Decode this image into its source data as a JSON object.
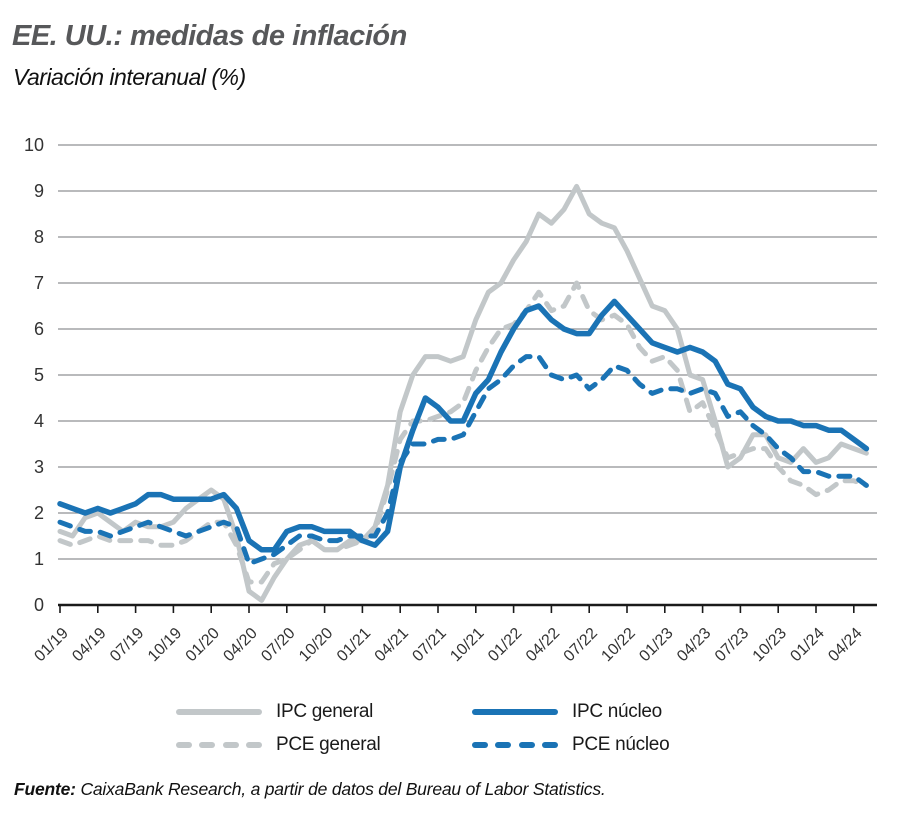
{
  "header": {
    "title": "EE. UU.: medidas de inflación",
    "subtitle": "Variación interanual (%)"
  },
  "theme": {
    "blue": "#1a73b5",
    "gray": "#c2c7c9",
    "grid": "#8f9193",
    "axis": "#1a1a1a",
    "title_color": "#57585a"
  },
  "legend": {
    "items": [
      {
        "label": "IPC general",
        "style": "solid",
        "color_key": "gray"
      },
      {
        "label": "PCE general",
        "style": "dashed",
        "color_key": "gray"
      },
      {
        "label": "IPC núcleo",
        "style": "solid",
        "color_key": "blue"
      },
      {
        "label": "PCE núcleo",
        "style": "dashed",
        "color_key": "blue"
      }
    ]
  },
  "footer": {
    "source_label": "Fuente:",
    "source_text": " CaixaBank Research, a partir de datos del Bureau of Labor Statistics."
  },
  "chart_data": {
    "type": "line",
    "title": "EE. UU.: medidas de inflación",
    "subtitle": "Variación interanual (%)",
    "x_unit": "monthly, 01/2019 - 05/2024",
    "x_tick_labels": [
      "01/19",
      "04/19",
      "07/19",
      "10/19",
      "01/20",
      "04/20",
      "07/20",
      "10/20",
      "01/21",
      "04/21",
      "07/21",
      "10/21",
      "01/22",
      "04/22",
      "07/22",
      "10/22",
      "01/23",
      "04/23",
      "07/23",
      "10/23",
      "01/24",
      "04/24"
    ],
    "ylim": [
      0,
      10
    ],
    "y_ticks": [
      0,
      1,
      2,
      3,
      4,
      5,
      6,
      7,
      8,
      9,
      10
    ],
    "grid": true,
    "legend_position": "bottom",
    "series": [
      {
        "id": "ipc-general",
        "name": "IPC general",
        "style": "solid",
        "color_key": "gray",
        "width": 5,
        "values": [
          1.6,
          1.5,
          1.9,
          2.0,
          1.8,
          1.6,
          1.8,
          1.7,
          1.7,
          1.8,
          2.1,
          2.3,
          2.5,
          2.3,
          1.5,
          0.3,
          0.1,
          0.6,
          1.0,
          1.3,
          1.4,
          1.2,
          1.2,
          1.4,
          1.4,
          1.7,
          2.6,
          4.2,
          5.0,
          5.4,
          5.4,
          5.3,
          5.4,
          6.2,
          6.8,
          7.0,
          7.5,
          7.9,
          8.5,
          8.3,
          8.6,
          9.1,
          8.5,
          8.3,
          8.2,
          7.7,
          7.1,
          6.5,
          6.4,
          6.0,
          5.0,
          4.9,
          4.0,
          3.0,
          3.2,
          3.7,
          3.7,
          3.2,
          3.1,
          3.4,
          3.1,
          3.2,
          3.5,
          3.4,
          3.3
        ]
      },
      {
        "id": "pce-general",
        "name": "PCE general",
        "style": "dashed",
        "color_key": "gray",
        "width": 5,
        "values": [
          1.4,
          1.3,
          1.4,
          1.5,
          1.4,
          1.4,
          1.4,
          1.4,
          1.3,
          1.3,
          1.4,
          1.6,
          1.8,
          1.8,
          1.3,
          0.5,
          0.5,
          0.9,
          1.0,
          1.2,
          1.4,
          1.2,
          1.2,
          1.3,
          1.4,
          1.6,
          2.5,
          3.6,
          4.0,
          4.0,
          4.1,
          4.2,
          4.4,
          5.1,
          5.6,
          6.0,
          6.1,
          6.4,
          6.8,
          6.4,
          6.5,
          7.0,
          6.4,
          6.2,
          6.3,
          6.1,
          5.6,
          5.3,
          5.4,
          5.1,
          4.2,
          4.4,
          3.8,
          3.2,
          3.3,
          3.4,
          3.4,
          3.0,
          2.7,
          2.6,
          2.4,
          2.5,
          2.7,
          2.7,
          2.6
        ]
      },
      {
        "id": "ipc-nucleo",
        "name": "IPC núcleo",
        "style": "solid",
        "color_key": "blue",
        "width": 5.5,
        "values": [
          2.2,
          2.1,
          2.0,
          2.1,
          2.0,
          2.1,
          2.2,
          2.4,
          2.4,
          2.3,
          2.3,
          2.3,
          2.3,
          2.4,
          2.1,
          1.4,
          1.2,
          1.2,
          1.6,
          1.7,
          1.7,
          1.6,
          1.6,
          1.6,
          1.4,
          1.3,
          1.6,
          3.0,
          3.8,
          4.5,
          4.3,
          4.0,
          4.0,
          4.6,
          4.9,
          5.5,
          6.0,
          6.4,
          6.5,
          6.2,
          6.0,
          5.9,
          5.9,
          6.3,
          6.6,
          6.3,
          6.0,
          5.7,
          5.6,
          5.5,
          5.6,
          5.5,
          5.3,
          4.8,
          4.7,
          4.3,
          4.1,
          4.0,
          4.0,
          3.9,
          3.9,
          3.8,
          3.8,
          3.6,
          3.4
        ]
      },
      {
        "id": "pce-nucleo",
        "name": "PCE núcleo",
        "style": "dashed",
        "color_key": "blue",
        "width": 5,
        "values": [
          1.8,
          1.7,
          1.6,
          1.6,
          1.5,
          1.6,
          1.7,
          1.8,
          1.7,
          1.6,
          1.5,
          1.6,
          1.7,
          1.8,
          1.7,
          0.9,
          1.0,
          1.1,
          1.3,
          1.5,
          1.5,
          1.4,
          1.4,
          1.5,
          1.5,
          1.5,
          2.0,
          3.1,
          3.5,
          3.5,
          3.6,
          3.6,
          3.7,
          4.2,
          4.7,
          4.9,
          5.2,
          5.4,
          5.4,
          5.0,
          4.9,
          5.0,
          4.7,
          4.9,
          5.2,
          5.1,
          4.8,
          4.6,
          4.7,
          4.7,
          4.6,
          4.7,
          4.6,
          4.1,
          4.2,
          3.9,
          3.7,
          3.4,
          3.2,
          2.9,
          2.9,
          2.8,
          2.8,
          2.8,
          2.6
        ]
      }
    ]
  }
}
